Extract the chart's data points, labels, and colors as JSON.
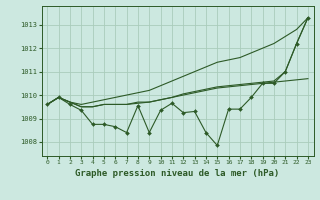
{
  "background_color": "#cce8e0",
  "grid_color": "#aaccbb",
  "line_color": "#2d5a27",
  "title": "Graphe pression niveau de la mer (hPa)",
  "title_fontsize": 6.5,
  "ylabel_ticks": [
    1008,
    1009,
    1010,
    1011,
    1012,
    1013
  ],
  "xlim": [
    -0.5,
    23.5
  ],
  "ylim": [
    1007.4,
    1013.8
  ],
  "x_hours": [
    0,
    1,
    2,
    3,
    4,
    5,
    6,
    7,
    8,
    9,
    10,
    11,
    12,
    13,
    14,
    15,
    16,
    17,
    18,
    19,
    20,
    21,
    22,
    23
  ],
  "line_top": [
    1009.6,
    1009.9,
    1009.7,
    1009.6,
    1009.7,
    1009.8,
    1009.9,
    1010.0,
    1010.1,
    1010.2,
    1010.4,
    1010.6,
    1010.8,
    1011.0,
    1011.2,
    1011.4,
    1011.5,
    1011.6,
    1011.8,
    1012.0,
    1012.2,
    1012.5,
    1012.8,
    1013.3
  ],
  "line_mid": [
    1009.6,
    1009.9,
    1009.7,
    1009.5,
    1009.5,
    1009.6,
    1009.6,
    1009.6,
    1009.7,
    1009.7,
    1009.8,
    1009.9,
    1010.0,
    1010.1,
    1010.2,
    1010.3,
    1010.35,
    1010.4,
    1010.45,
    1010.5,
    1010.55,
    1010.6,
    1010.65,
    1010.7
  ],
  "line_mid2": [
    1009.6,
    1009.9,
    1009.7,
    1009.5,
    1009.5,
    1009.6,
    1009.6,
    1009.6,
    1009.65,
    1009.7,
    1009.8,
    1009.9,
    1010.05,
    1010.15,
    1010.25,
    1010.35,
    1010.4,
    1010.45,
    1010.5,
    1010.55,
    1010.6,
    1011.0,
    1012.2,
    1013.3
  ],
  "line_jagged": [
    1009.6,
    1009.9,
    1009.6,
    1009.35,
    1008.75,
    1008.75,
    1008.65,
    1008.4,
    1009.55,
    1008.4,
    1009.35,
    1009.65,
    1009.25,
    1009.3,
    1008.4,
    1007.85,
    1009.4,
    1009.4,
    1009.9,
    1010.5,
    1010.5,
    1011.0,
    1012.2,
    1013.3
  ]
}
